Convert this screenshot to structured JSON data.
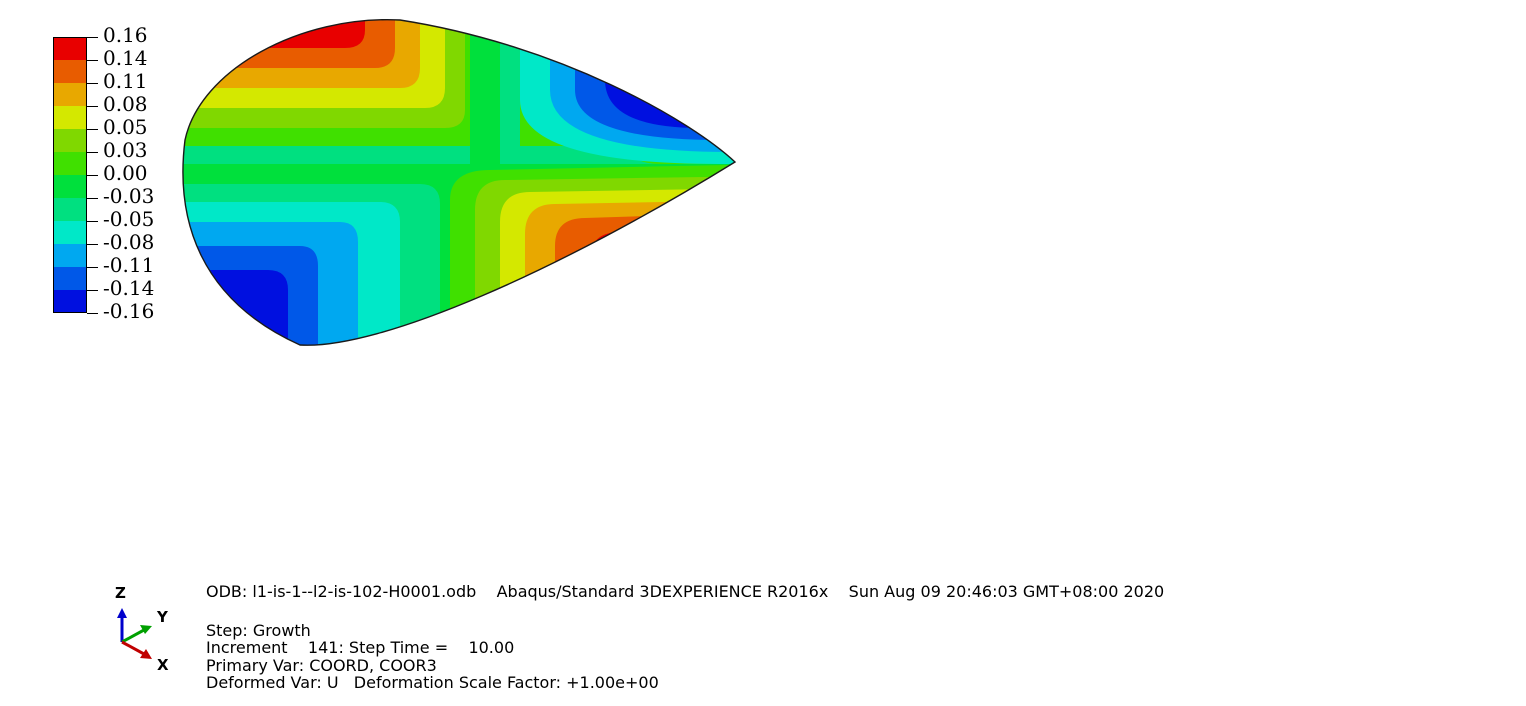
{
  "legend": {
    "labels": [
      "0.16",
      "0.14",
      "0.11",
      "0.08",
      "0.05",
      "0.03",
      "0.00",
      "-0.03",
      "-0.05",
      "-0.08",
      "-0.11",
      "-0.14",
      "-0.16"
    ],
    "colors": [
      "#e80000",
      "#e85c00",
      "#e8a800",
      "#d4e800",
      "#80d800",
      "#40e000",
      "#00e03c",
      "#00e080",
      "#00e8c8",
      "#00a8f0",
      "#0058e8",
      "#0010e0"
    ]
  },
  "model": {
    "field": "COORD, COOR3",
    "band_colors": {
      "red": "#e80000",
      "dark_orange": "#e85c00",
      "orange": "#e8a800",
      "yellow": "#d4e800",
      "yellow_green": "#80d800",
      "green": "#40e000",
      "mid_green": "#00e03c",
      "cyan_green": "#00e080",
      "cyan": "#00e8c8",
      "light_blue": "#00a8f0",
      "blue": "#0058e8",
      "dark_blue": "#0010e0"
    }
  },
  "triad": {
    "z_label": "Z",
    "y_label": "Y",
    "x_label": "X",
    "z_color": "#0000cc",
    "y_color": "#00a000",
    "x_color": "#c00000"
  },
  "info": {
    "odb_line": "ODB: l1-is-1--l2-is-102-H0001.odb    Abaqus/Standard 3DEXPERIENCE R2016x    Sun Aug 09 20:46:03 GMT+08:00 2020",
    "step_line": "Step: Growth",
    "increment_line": "Increment    141: Step Time =    10.00",
    "primary_var_line": "Primary Var: COORD, COOR3",
    "deformed_var_line": "Deformed Var: U   Deformation Scale Factor: +1.00e+00"
  }
}
